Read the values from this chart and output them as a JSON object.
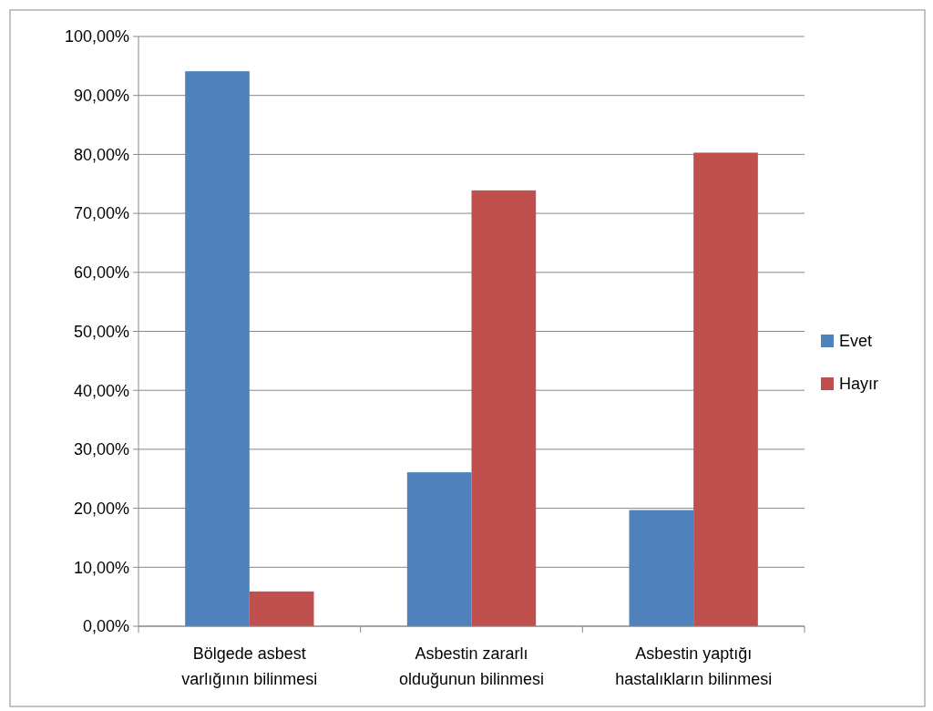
{
  "chart_data": {
    "type": "bar",
    "categories": [
      "Bölgede asbest varlığının bilinmesi",
      "Asbestin zararlı olduğunun bilinmesi",
      "Asbestin yaptığı hastalıkların bilinmesi"
    ],
    "series": [
      {
        "name": "Evet",
        "color": "#4f81bd",
        "values": [
          94.1,
          26.1,
          19.7
        ]
      },
      {
        "name": "Hayır",
        "color": "#c0504d",
        "values": [
          5.9,
          73.9,
          80.3
        ]
      }
    ],
    "ylim": [
      0,
      100
    ],
    "yticks": [
      {
        "value": 0,
        "label": "0,00%"
      },
      {
        "value": 10,
        "label": "10,00%"
      },
      {
        "value": 20,
        "label": "20,00%"
      },
      {
        "value": 30,
        "label": "30,00%"
      },
      {
        "value": 40,
        "label": "40,00%"
      },
      {
        "value": 50,
        "label": "50,00%"
      },
      {
        "value": 60,
        "label": "60,00%"
      },
      {
        "value": 70,
        "label": "70,00%"
      },
      {
        "value": 80,
        "label": "80,00%"
      },
      {
        "value": 90,
        "label": "90,00%"
      },
      {
        "value": 100,
        "label": "100,00%"
      }
    ],
    "grid": "y",
    "legend": "right"
  }
}
